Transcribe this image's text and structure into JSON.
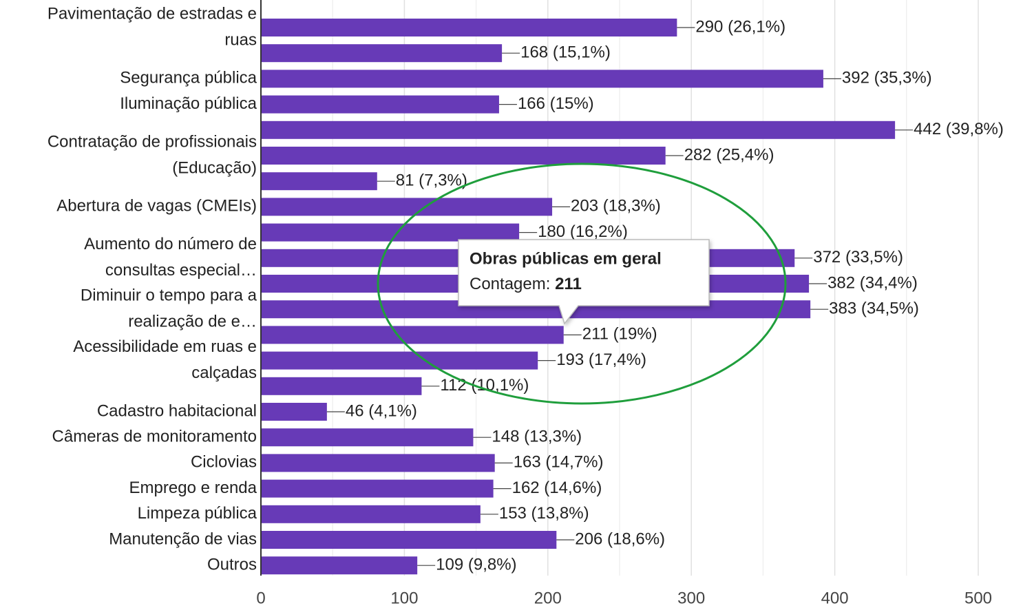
{
  "chart_data": {
    "type": "bar",
    "orientation": "horizontal",
    "color": "#673ab7",
    "categories": [
      [
        "Pavimentação de estradas e",
        "ruas"
      ],
      null,
      "Segurança pública",
      "Iluminação pública",
      null,
      [
        "Contratação de profissionais",
        "(Educação)"
      ],
      null,
      "Abertura de vagas (CMEIs)",
      null,
      [
        "Aumento do número de",
        "consultas especial…"
      ],
      null,
      [
        "Diminuir o tempo para a",
        "realização de e…"
      ],
      null,
      [
        "Acessibilidade em ruas e",
        "calçadas"
      ],
      null,
      "Cadastro habitacional",
      "Câmeras de monitoramento",
      "Ciclovias",
      "Emprego e renda",
      "Limpeza pública",
      "Manutenção de vias",
      "Outros"
    ],
    "values": [
      290,
      168,
      392,
      166,
      442,
      282,
      81,
      203,
      180,
      372,
      382,
      383,
      211,
      193,
      112,
      46,
      148,
      163,
      162,
      153,
      206,
      109
    ],
    "value_labels": [
      "290 (26,1%)",
      "168 (15,1%)",
      "392 (35,3%)",
      "166 (15%)",
      "442 (39,8%)",
      "282 (25,4%)",
      "81 (7,3%)",
      "203 (18,3%)",
      "180 (16,2%)",
      "372 (33,5%)",
      "382 (34,4%)",
      "383 (34,5%)",
      "211 (19%)",
      "193 (17,4%)",
      "112 (10,1%)",
      "46 (4,1%)",
      "148 (13,3%)",
      "163 (14,7%)",
      "162 (14,6%)",
      "153 (13,8%)",
      "206 (18,6%)",
      "109 (9,8%)"
    ],
    "xlim": [
      0,
      500
    ],
    "xticks": [
      0,
      100,
      200,
      300,
      400,
      500
    ],
    "xminorticks": [
      50,
      150,
      250,
      350,
      450
    ],
    "grid": true,
    "tooltip": {
      "title": "Obras públicas em geral",
      "label": "Contagem:",
      "value": 211,
      "category_index": 12
    }
  }
}
